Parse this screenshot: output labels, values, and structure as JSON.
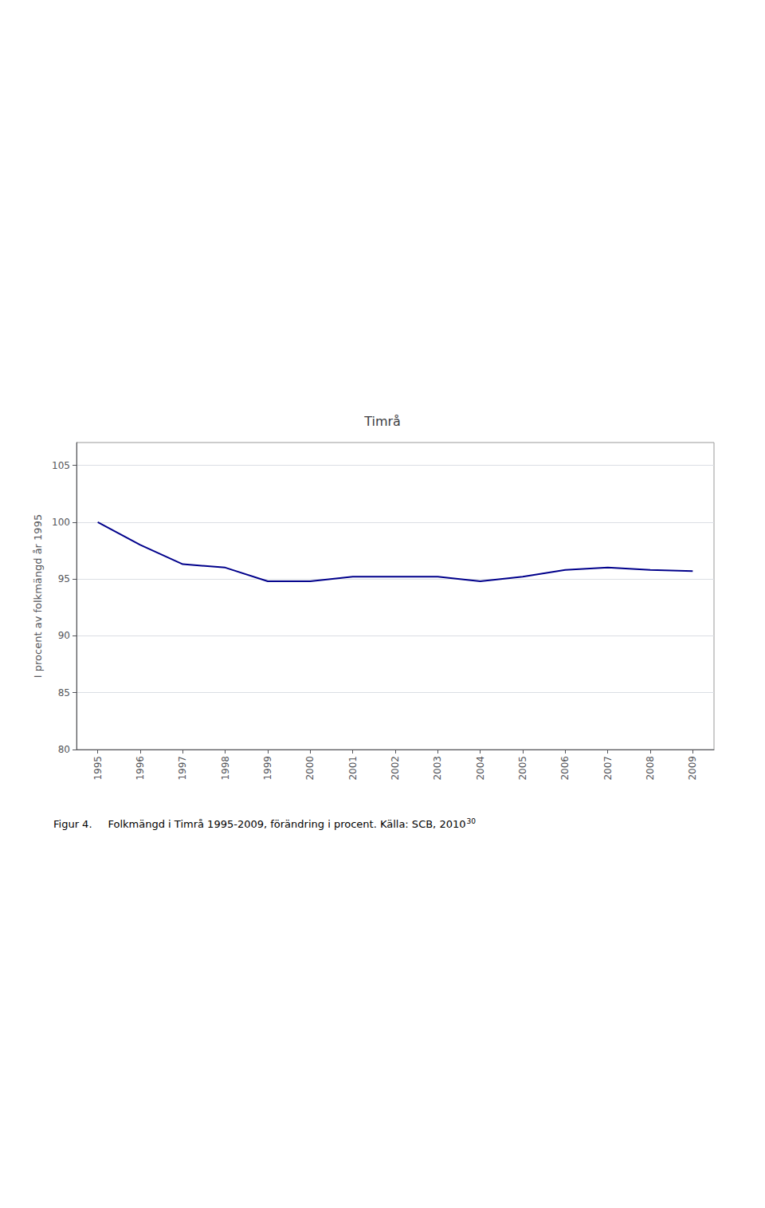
{
  "chart_data": {
    "type": "line",
    "title": "Timrå",
    "x": [
      1995,
      1996,
      1997,
      1998,
      1999,
      2000,
      2001,
      2002,
      2003,
      2004,
      2005,
      2006,
      2007,
      2008,
      2009
    ],
    "values": [
      100.0,
      98.0,
      96.3,
      96.0,
      94.8,
      94.8,
      95.2,
      95.2,
      95.2,
      94.8,
      95.2,
      95.8,
      96.0,
      95.8,
      95.7
    ],
    "color": "#00008B",
    "ylabel": "I procent av folkmängd år 1995",
    "xlim": [
      1994.5,
      2009.5
    ],
    "xticks": [
      1995,
      1996,
      1997,
      1998,
      1999,
      2000,
      2001,
      2002,
      2003,
      2004,
      2005,
      2006,
      2007,
      2008,
      2009
    ],
    "ylim": [
      80,
      107
    ],
    "yticks": [
      80,
      85,
      90,
      95,
      100,
      105
    ],
    "grid": true,
    "annotations": [
      "Figur 4.",
      "Folkmängd i Timrå 1995-2009, förändring i procent. Källa: SCB, 2010",
      "30"
    ]
  }
}
